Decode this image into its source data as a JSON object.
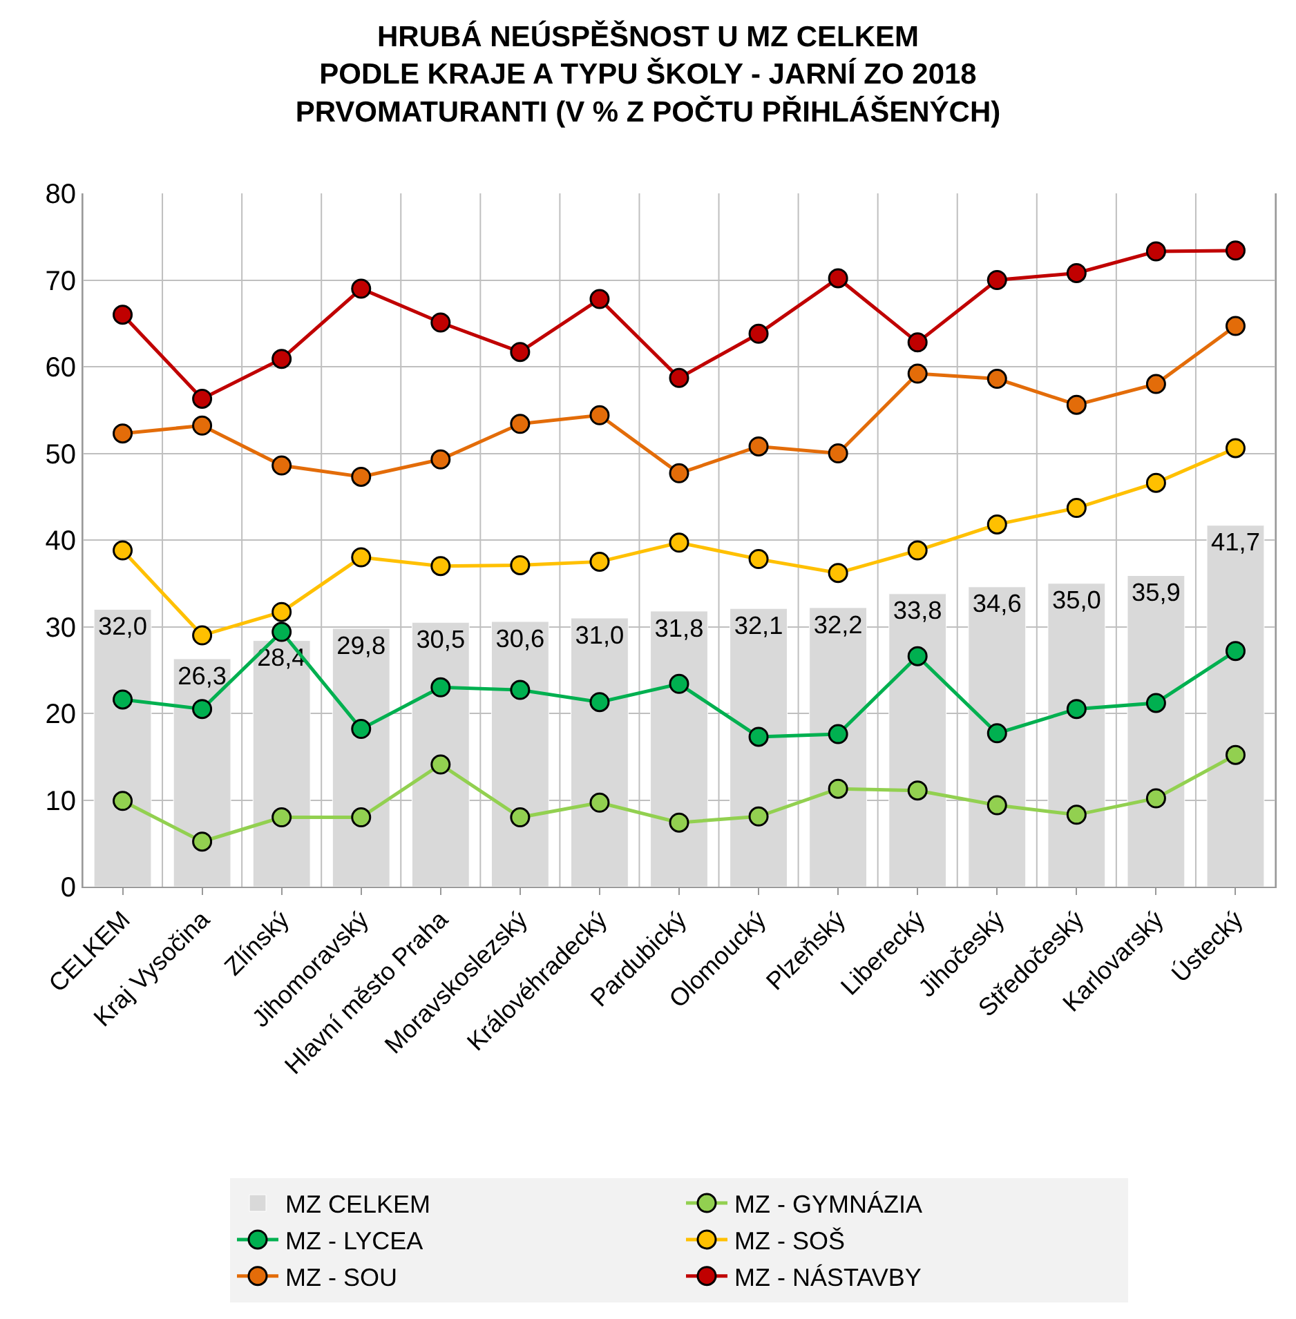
{
  "chart_data": {
    "type": "line",
    "title": "HRUBÁ NEÚSPĚŠNOST U MZ CELKEM\nPODLE KRAJE A TYPU ŠKOLY - JARNÍ ZO 2018\nPRVOMATURANTI (V % Z POČTU PŘIHLÁŠENÝCH)",
    "categories": [
      "CELKEM",
      "Kraj Vysočina",
      "Zlínský",
      "Jihomoravský",
      "Hlavní město Praha",
      "Moravskoslezský",
      "Královéhradecký",
      "Pardubický",
      "Olomoucký",
      "Plzeňský",
      "Liberecký",
      "Jihočeský",
      "Středočeský",
      "Karlovarský",
      "Ústecký"
    ],
    "series": [
      {
        "name": "MZ CELKEM",
        "type": "bar",
        "color": "#d9d9d9",
        "values": [
          32.0,
          26.3,
          28.4,
          29.8,
          30.5,
          30.6,
          31.0,
          31.8,
          32.1,
          32.2,
          33.8,
          34.6,
          35.0,
          35.9,
          41.7
        ],
        "value_labels": [
          "32,0",
          "26,3",
          "28,4",
          "29,8",
          "30,5",
          "30,6",
          "31,0",
          "31,8",
          "32,1",
          "32,2",
          "33,8",
          "34,6",
          "35,0",
          "35,9",
          "41,7"
        ]
      },
      {
        "name": "MZ - GYMNÁZIA",
        "color": "#92d050",
        "values": [
          9.9,
          5.2,
          8.0,
          8.0,
          14.1,
          8.0,
          9.7,
          7.4,
          8.1,
          11.3,
          11.1,
          9.4,
          8.3,
          10.2,
          15.2
        ]
      },
      {
        "name": "MZ - LYCEA",
        "color": "#00b050",
        "values": [
          21.6,
          20.5,
          29.4,
          18.2,
          23.0,
          22.7,
          21.3,
          23.4,
          17.3,
          17.6,
          26.6,
          17.7,
          20.5,
          21.2,
          27.2
        ]
      },
      {
        "name": "MZ - SOŠ",
        "color": "#ffc000",
        "values": [
          38.8,
          29.0,
          31.7,
          38.0,
          37.0,
          37.1,
          37.5,
          39.7,
          37.8,
          36.2,
          38.8,
          41.8,
          43.7,
          46.6,
          50.6
        ]
      },
      {
        "name": "MZ - SOU",
        "color": "#e36c09",
        "values": [
          52.3,
          53.2,
          48.6,
          47.3,
          49.3,
          53.4,
          54.4,
          47.7,
          50.8,
          50.0,
          59.2,
          58.6,
          55.6,
          58.0,
          64.7
        ]
      },
      {
        "name": "MZ - NÁSTAVBY",
        "color": "#c00000",
        "values": [
          66.0,
          56.3,
          60.9,
          69.0,
          65.1,
          61.7,
          67.8,
          58.7,
          63.8,
          70.2,
          62.8,
          70.0,
          70.8,
          73.3,
          73.4
        ]
      }
    ],
    "ylim": [
      0,
      80
    ],
    "yticks": [
      0,
      10,
      20,
      30,
      40,
      50,
      60,
      70,
      80
    ],
    "grid": true,
    "legend": "bottom",
    "marker": "circle",
    "line_style": "solid"
  }
}
